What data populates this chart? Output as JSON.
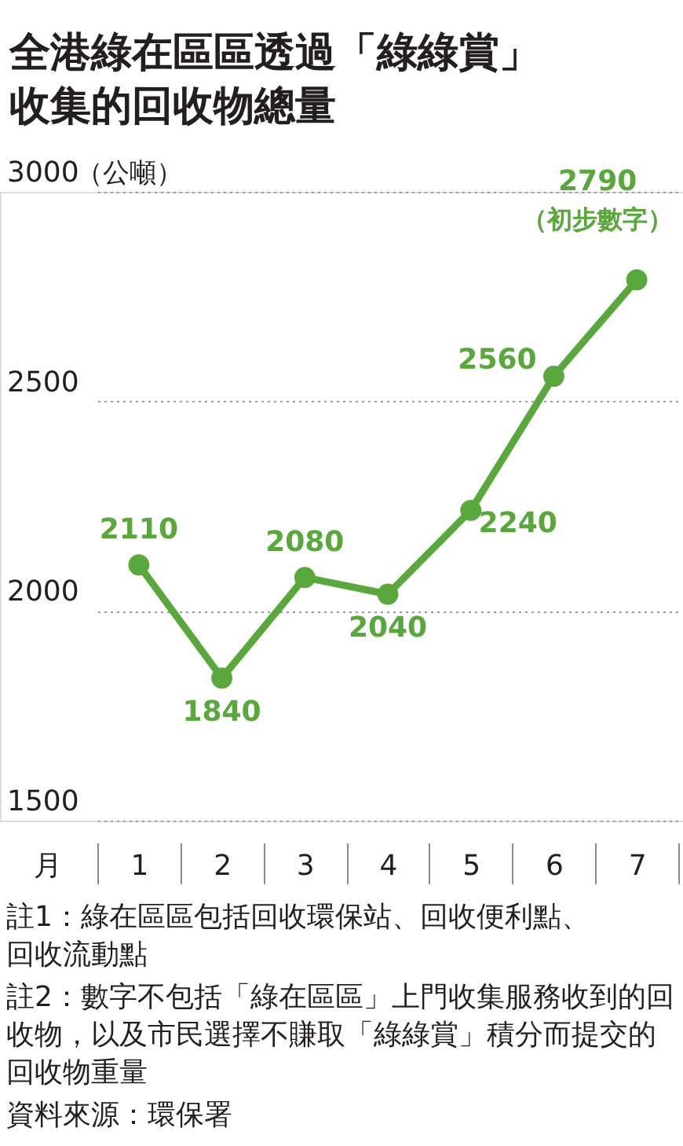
{
  "chart_data": {
    "type": "line",
    "title": "全港綠在區區透過「綠綠賞」收集的回收物總量",
    "xlabel": "月",
    "ylabel": "（公噸）",
    "categories": [
      "1",
      "2",
      "3",
      "4",
      "5",
      "6",
      "7"
    ],
    "series": [
      {
        "color": "#58a83b",
        "values": [
          2110,
          1840,
          2080,
          2040,
          2240,
          2560,
          2790
        ]
      }
    ],
    "ylim": [
      1500,
      3000
    ],
    "yticks": [
      1500,
      2000,
      2500,
      3000
    ],
    "grid": "y",
    "marker": "circle",
    "line_style": "solid",
    "data_labels": true,
    "annotations": [
      {
        "text": "（初步數字）",
        "x": "7",
        "y": 2790
      },
      "註1：綠在區區包括回收環保站、回收便利點、回收流動點",
      "註2：數字不包括「綠在區區」上門收集服務收到的回收物，以及市民選擇不賺取「綠綠賞」積分而提交的回收物重量",
      "資料來源：環保署"
    ]
  }
}
